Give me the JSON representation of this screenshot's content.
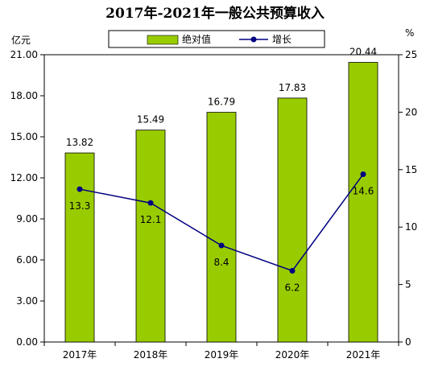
{
  "chart_data": {
    "type": "bar",
    "title": "2017年-2021年一般公共预算收入",
    "categories": [
      "2017年",
      "2018年",
      "2019年",
      "2020年",
      "2021年"
    ],
    "y_left_unit": "亿元",
    "y_right_unit": "%",
    "y_left_ticks": [
      "0.00",
      "3.00",
      "6.00",
      "9.00",
      "12.00",
      "15.00",
      "18.00",
      "21.00"
    ],
    "y_right_ticks": [
      "0",
      "5",
      "10",
      "15",
      "20",
      "25"
    ],
    "ylim_left": [
      0,
      21
    ],
    "ylim_right": [
      0,
      25
    ],
    "grid": false,
    "legend_position": "top",
    "series": [
      {
        "name": "绝对值",
        "type": "bar",
        "axis": "left",
        "color": "#99cc00",
        "values": [
          13.82,
          15.49,
          16.79,
          17.83,
          20.44
        ],
        "labels": [
          "13.82",
          "15.49",
          "16.79",
          "17.83",
          "20.44"
        ]
      },
      {
        "name": "增长",
        "type": "line",
        "axis": "right",
        "color": "#000080",
        "values": [
          13.3,
          12.1,
          8.4,
          6.2,
          14.6
        ],
        "labels": [
          "13.3",
          "12.1",
          "8.4",
          "6.2",
          "14.6"
        ]
      }
    ]
  }
}
